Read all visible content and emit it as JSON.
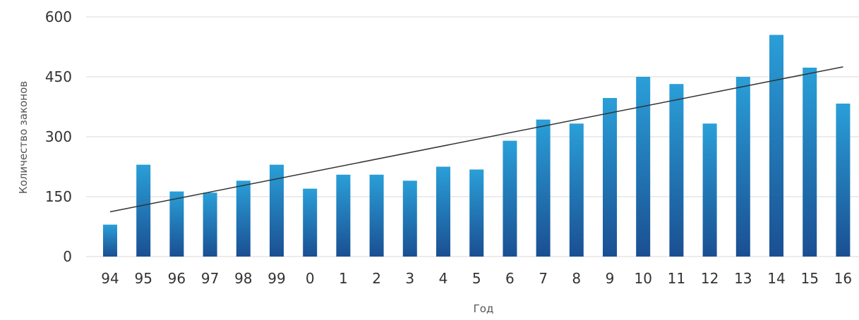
{
  "chart_data": {
    "type": "bar",
    "title": "",
    "xlabel": "Год",
    "ylabel": "Количество законов",
    "categories": [
      "94",
      "95",
      "96",
      "97",
      "98",
      "99",
      "0",
      "1",
      "2",
      "3",
      "4",
      "5",
      "6",
      "7",
      "8",
      "9",
      "10",
      "11",
      "12",
      "13",
      "14",
      "15",
      "16"
    ],
    "values": [
      80,
      230,
      163,
      160,
      190,
      230,
      170,
      205,
      205,
      190,
      225,
      218,
      290,
      343,
      333,
      397,
      450,
      432,
      333,
      450,
      555,
      473,
      383
    ],
    "ylim": [
      0,
      600
    ],
    "yticks": [
      0,
      150,
      300,
      450,
      600
    ],
    "grid": true,
    "legend": "none",
    "trendline": {
      "type": "linear",
      "start": 112,
      "end": 475
    },
    "colors": {
      "bar_top": "#2a9fd8",
      "bar_bottom": "#1a4f92",
      "trendline": "#333333",
      "grid": "#e6e6e6"
    }
  }
}
